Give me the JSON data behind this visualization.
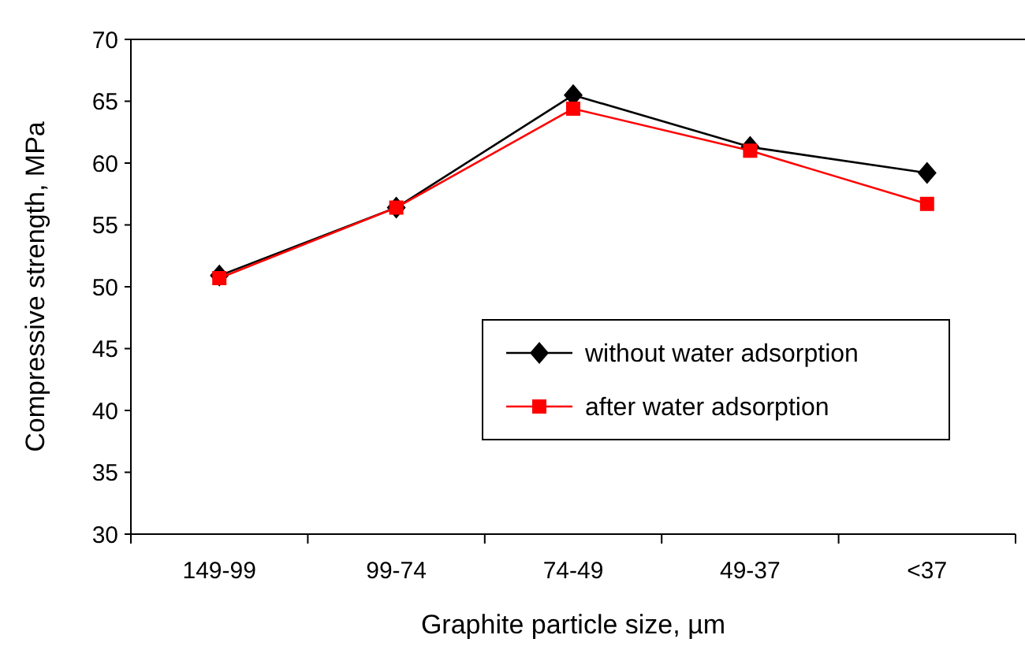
{
  "chart_data": {
    "type": "line",
    "xlabel": "Graphite particle size, µm",
    "ylabel": "Compressive strength, MPa",
    "categories": [
      "149-99",
      "99-74",
      "74-49",
      "49-37",
      "<37"
    ],
    "series": [
      {
        "name": "without water adsorption",
        "color": "#000000",
        "marker": "diamond",
        "values": [
          50.9,
          56.4,
          65.5,
          61.3,
          59.2
        ]
      },
      {
        "name": "after water adsorption",
        "color": "#ff0000",
        "marker": "square",
        "values": [
          50.7,
          56.4,
          64.4,
          61.0,
          56.7
        ]
      }
    ],
    "ylim": [
      30,
      70
    ],
    "yticks": [
      30,
      35,
      40,
      45,
      50,
      55,
      60,
      65,
      70
    ],
    "grid": false,
    "legend": "bottom right",
    "line_style": "solid"
  }
}
